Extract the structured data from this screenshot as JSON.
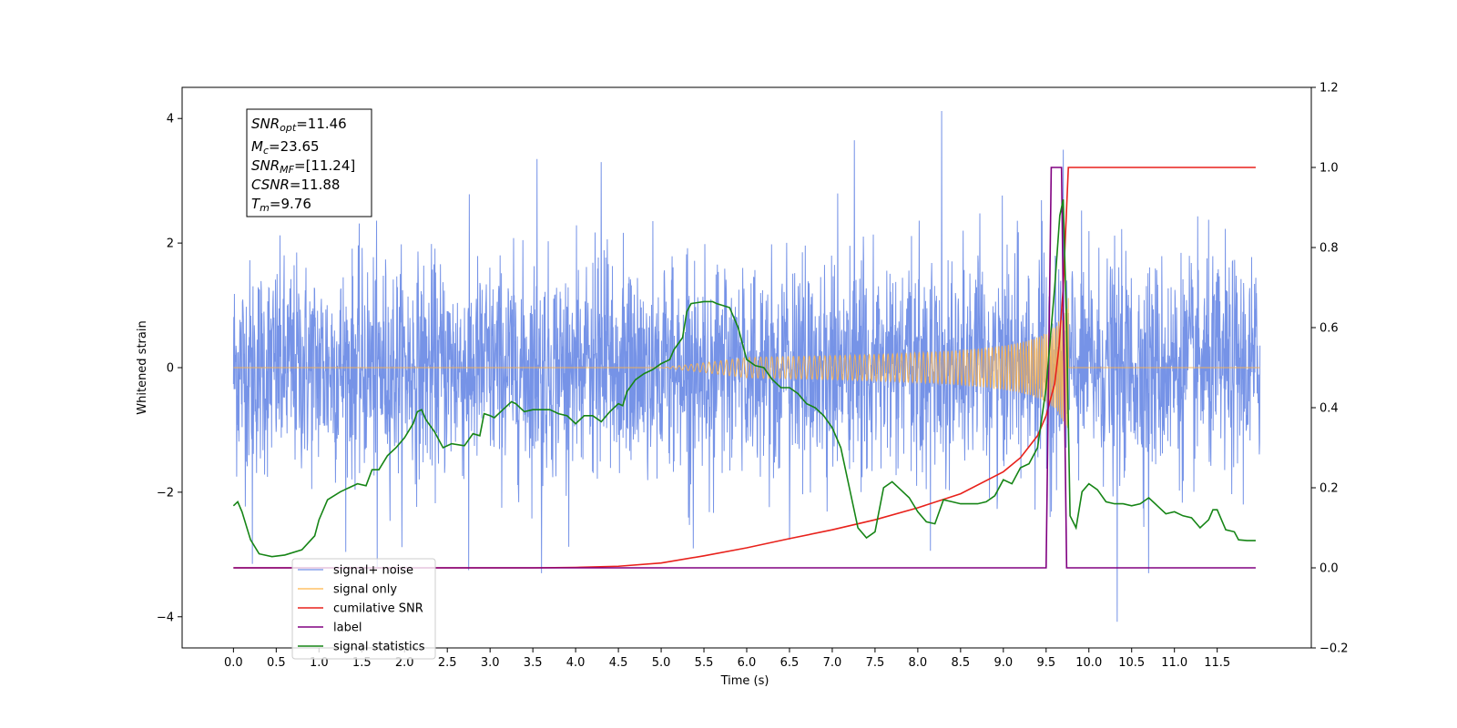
{
  "chart_data": {
    "type": "line",
    "xlabel": "Time (s)",
    "ylabel": "Whitened strain",
    "xlim": [
      -0.6,
      12.6
    ],
    "ylim": [
      -4.5,
      4.5
    ],
    "y2lim": [
      -0.2,
      1.2
    ],
    "x_ticks": [
      0.0,
      0.5,
      1.0,
      1.5,
      2.0,
      2.5,
      3.0,
      3.5,
      4.0,
      4.5,
      5.0,
      5.5,
      6.0,
      6.5,
      7.0,
      7.5,
      8.0,
      8.5,
      9.0,
      9.5,
      10.0,
      10.5,
      11.0,
      11.5
    ],
    "x_tick_labels": [
      "0.0",
      "0.5",
      "1.0",
      "1.5",
      "2.0",
      "2.5",
      "3.0",
      "3.5",
      "4.0",
      "4.5",
      "5.0",
      "5.5",
      "6.0",
      "6.5",
      "7.0",
      "7.5",
      "8.0",
      "8.5",
      "9.0",
      "9.5",
      "10.0",
      "10.5",
      "11.0",
      "11.5"
    ],
    "y_ticks": [
      -4,
      -2,
      0,
      2,
      4
    ],
    "y_tick_labels": [
      "−4",
      "−2",
      "0",
      "2",
      "4"
    ],
    "y2_ticks": [
      -0.2,
      0.0,
      0.2,
      0.4,
      0.6,
      0.8,
      1.0,
      1.2
    ],
    "y2_tick_labels": [
      "−0.2",
      "0.0",
      "0.2",
      "0.4",
      "0.6",
      "0.8",
      "1.0",
      "1.2"
    ],
    "legend_position": "lower-left",
    "series": [
      {
        "name": "signal+ noise",
        "axis": "left",
        "color": "#6f8de6",
        "x_range": [
          0.0,
          12.0
        ],
        "approx_std": 0.85,
        "notable_peaks": [
          {
            "x": 8.28,
            "y": 4.12
          },
          {
            "x": 7.26,
            "y": 3.65
          },
          {
            "x": 3.55,
            "y": 3.35
          },
          {
            "x": 4.3,
            "y": 3.3
          },
          {
            "x": 9.7,
            "y": 3.5
          },
          {
            "x": 10.33,
            "y": -4.08
          },
          {
            "x": 10.7,
            "y": -3.3
          },
          {
            "x": 3.6,
            "y": -3.3
          },
          {
            "x": 2.75,
            "y": -3.25
          },
          {
            "x": 1.68,
            "y": -3.2
          },
          {
            "x": 0.22,
            "y": -3.15
          }
        ]
      },
      {
        "name": "signal only",
        "axis": "left",
        "color": "#ffb347",
        "chirp_start": 5.0,
        "merger_time": 9.76,
        "peak_amplitude": 1.15
      },
      {
        "name": "cumilative SNR",
        "axis": "right",
        "color": "#e8211b",
        "points": [
          [
            0.0,
            0.0
          ],
          [
            3.5,
            0.0
          ],
          [
            4.0,
            0.001
          ],
          [
            4.5,
            0.004
          ],
          [
            5.0,
            0.012
          ],
          [
            5.5,
            0.03
          ],
          [
            6.0,
            0.05
          ],
          [
            6.5,
            0.073
          ],
          [
            7.0,
            0.095
          ],
          [
            7.5,
            0.12
          ],
          [
            8.0,
            0.15
          ],
          [
            8.5,
            0.185
          ],
          [
            9.0,
            0.24
          ],
          [
            9.2,
            0.275
          ],
          [
            9.4,
            0.33
          ],
          [
            9.5,
            0.38
          ],
          [
            9.6,
            0.46
          ],
          [
            9.65,
            0.55
          ],
          [
            9.7,
            0.7
          ],
          [
            9.73,
            0.85
          ],
          [
            9.76,
            1.0
          ],
          [
            11.95,
            1.0
          ]
        ]
      },
      {
        "name": "label",
        "axis": "right",
        "color": "#800080",
        "points": [
          [
            0.0,
            0.0
          ],
          [
            9.5,
            0.0
          ],
          [
            9.56,
            1.0
          ],
          [
            9.68,
            1.0
          ],
          [
            9.74,
            0.0
          ],
          [
            11.95,
            0.0
          ]
        ]
      },
      {
        "name": "signal statistics",
        "axis": "right",
        "color": "#168516",
        "points": [
          [
            0.0,
            0.155
          ],
          [
            0.05,
            0.165
          ],
          [
            0.1,
            0.14
          ],
          [
            0.2,
            0.07
          ],
          [
            0.3,
            0.035
          ],
          [
            0.45,
            0.028
          ],
          [
            0.6,
            0.032
          ],
          [
            0.8,
            0.045
          ],
          [
            0.95,
            0.08
          ],
          [
            1.0,
            0.12
          ],
          [
            1.1,
            0.17
          ],
          [
            1.25,
            0.19
          ],
          [
            1.35,
            0.2
          ],
          [
            1.45,
            0.21
          ],
          [
            1.55,
            0.205
          ],
          [
            1.62,
            0.245
          ],
          [
            1.7,
            0.245
          ],
          [
            1.8,
            0.28
          ],
          [
            1.9,
            0.3
          ],
          [
            2.0,
            0.325
          ],
          [
            2.1,
            0.36
          ],
          [
            2.15,
            0.39
          ],
          [
            2.2,
            0.395
          ],
          [
            2.25,
            0.37
          ],
          [
            2.35,
            0.34
          ],
          [
            2.45,
            0.3
          ],
          [
            2.55,
            0.31
          ],
          [
            2.7,
            0.305
          ],
          [
            2.8,
            0.335
          ],
          [
            2.88,
            0.33
          ],
          [
            2.93,
            0.385
          ],
          [
            3.0,
            0.38
          ],
          [
            3.05,
            0.375
          ],
          [
            3.15,
            0.395
          ],
          [
            3.2,
            0.405
          ],
          [
            3.25,
            0.415
          ],
          [
            3.3,
            0.41
          ],
          [
            3.4,
            0.39
          ],
          [
            3.5,
            0.395
          ],
          [
            3.7,
            0.395
          ],
          [
            3.8,
            0.385
          ],
          [
            3.9,
            0.38
          ],
          [
            4.0,
            0.36
          ],
          [
            4.1,
            0.38
          ],
          [
            4.2,
            0.38
          ],
          [
            4.3,
            0.365
          ],
          [
            4.4,
            0.39
          ],
          [
            4.5,
            0.41
          ],
          [
            4.55,
            0.405
          ],
          [
            4.6,
            0.44
          ],
          [
            4.7,
            0.47
          ],
          [
            4.8,
            0.485
          ],
          [
            4.9,
            0.495
          ],
          [
            5.0,
            0.51
          ],
          [
            5.1,
            0.52
          ],
          [
            5.15,
            0.545
          ],
          [
            5.2,
            0.56
          ],
          [
            5.25,
            0.575
          ],
          [
            5.3,
            0.64
          ],
          [
            5.35,
            0.66
          ],
          [
            5.5,
            0.665
          ],
          [
            5.6,
            0.665
          ],
          [
            5.65,
            0.66
          ],
          [
            5.8,
            0.65
          ],
          [
            5.9,
            0.6
          ],
          [
            6.0,
            0.52
          ],
          [
            6.1,
            0.505
          ],
          [
            6.2,
            0.5
          ],
          [
            6.3,
            0.47
          ],
          [
            6.4,
            0.45
          ],
          [
            6.5,
            0.45
          ],
          [
            6.6,
            0.435
          ],
          [
            6.7,
            0.41
          ],
          [
            6.8,
            0.4
          ],
          [
            6.9,
            0.38
          ],
          [
            7.0,
            0.35
          ],
          [
            7.1,
            0.3
          ],
          [
            7.2,
            0.2
          ],
          [
            7.3,
            0.1
          ],
          [
            7.4,
            0.075
          ],
          [
            7.5,
            0.09
          ],
          [
            7.6,
            0.2
          ],
          [
            7.7,
            0.215
          ],
          [
            7.8,
            0.195
          ],
          [
            7.9,
            0.175
          ],
          [
            8.0,
            0.14
          ],
          [
            8.1,
            0.115
          ],
          [
            8.2,
            0.11
          ],
          [
            8.3,
            0.17
          ],
          [
            8.4,
            0.165
          ],
          [
            8.5,
            0.16
          ],
          [
            8.6,
            0.16
          ],
          [
            8.7,
            0.16
          ],
          [
            8.8,
            0.165
          ],
          [
            8.9,
            0.18
          ],
          [
            9.0,
            0.22
          ],
          [
            9.1,
            0.21
          ],
          [
            9.2,
            0.25
          ],
          [
            9.3,
            0.26
          ],
          [
            9.4,
            0.3
          ],
          [
            9.5,
            0.45
          ],
          [
            9.6,
            0.7
          ],
          [
            9.66,
            0.88
          ],
          [
            9.7,
            0.92
          ],
          [
            9.74,
            0.6
          ],
          [
            9.78,
            0.13
          ],
          [
            9.85,
            0.1
          ],
          [
            9.92,
            0.19
          ],
          [
            10.0,
            0.21
          ],
          [
            10.1,
            0.195
          ],
          [
            10.2,
            0.165
          ],
          [
            10.3,
            0.16
          ],
          [
            10.4,
            0.16
          ],
          [
            10.5,
            0.155
          ],
          [
            10.6,
            0.16
          ],
          [
            10.7,
            0.175
          ],
          [
            10.8,
            0.155
          ],
          [
            10.9,
            0.135
          ],
          [
            11.0,
            0.14
          ],
          [
            11.1,
            0.13
          ],
          [
            11.2,
            0.125
          ],
          [
            11.3,
            0.1
          ],
          [
            11.4,
            0.12
          ],
          [
            11.45,
            0.145
          ],
          [
            11.5,
            0.145
          ],
          [
            11.6,
            0.095
          ],
          [
            11.7,
            0.09
          ],
          [
            11.75,
            0.07
          ],
          [
            11.85,
            0.068
          ],
          [
            11.95,
            0.068
          ]
        ]
      }
    ]
  },
  "info_box": {
    "snr_opt_sym": "SNR",
    "snr_opt_sub": "opt",
    "snr_opt_val": "=11.46",
    "mc_sym": "M",
    "mc_sub": "c",
    "mc_val": "=23.65",
    "snr_mf_sym": "SNR",
    "snr_mf_sub": "MF",
    "snr_mf_val": "=[11.24]",
    "csnr_sym": "CSNR",
    "csnr_val": "=11.88",
    "tm_sym": "T",
    "tm_sub": "m",
    "tm_val": "=9.76"
  }
}
